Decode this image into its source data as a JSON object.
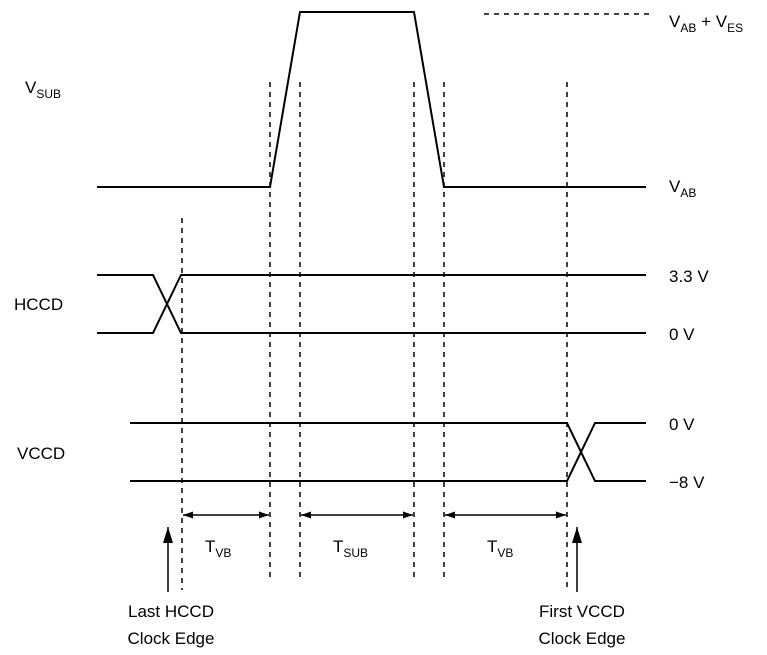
{
  "signals": {
    "vsub": {
      "main": "V",
      "sub": "SUB"
    },
    "hccd": {
      "label": "HCCD"
    },
    "vccd": {
      "label": "VCCD"
    }
  },
  "levels": {
    "vab_ves": {
      "main1": "V",
      "sub1": "AB",
      "mid": " + V",
      "sub2": "ES"
    },
    "vab": {
      "main": "V",
      "sub": "AB"
    },
    "hccd_high": "3.3 V",
    "hccd_low": "0 V",
    "vccd_high": "0 V",
    "vccd_low": "−8 V"
  },
  "intervals": {
    "tvb_left": {
      "main": "T",
      "sub": "VB"
    },
    "tsub": {
      "main": "T",
      "sub": "SUB"
    },
    "tvb_right": {
      "main": "T",
      "sub": "VB"
    }
  },
  "annotations": {
    "last_hccd": [
      "Last HCCD",
      "Clock Edge"
    ],
    "first_vccd": [
      "First VCCD",
      "Clock Edge"
    ]
  }
}
